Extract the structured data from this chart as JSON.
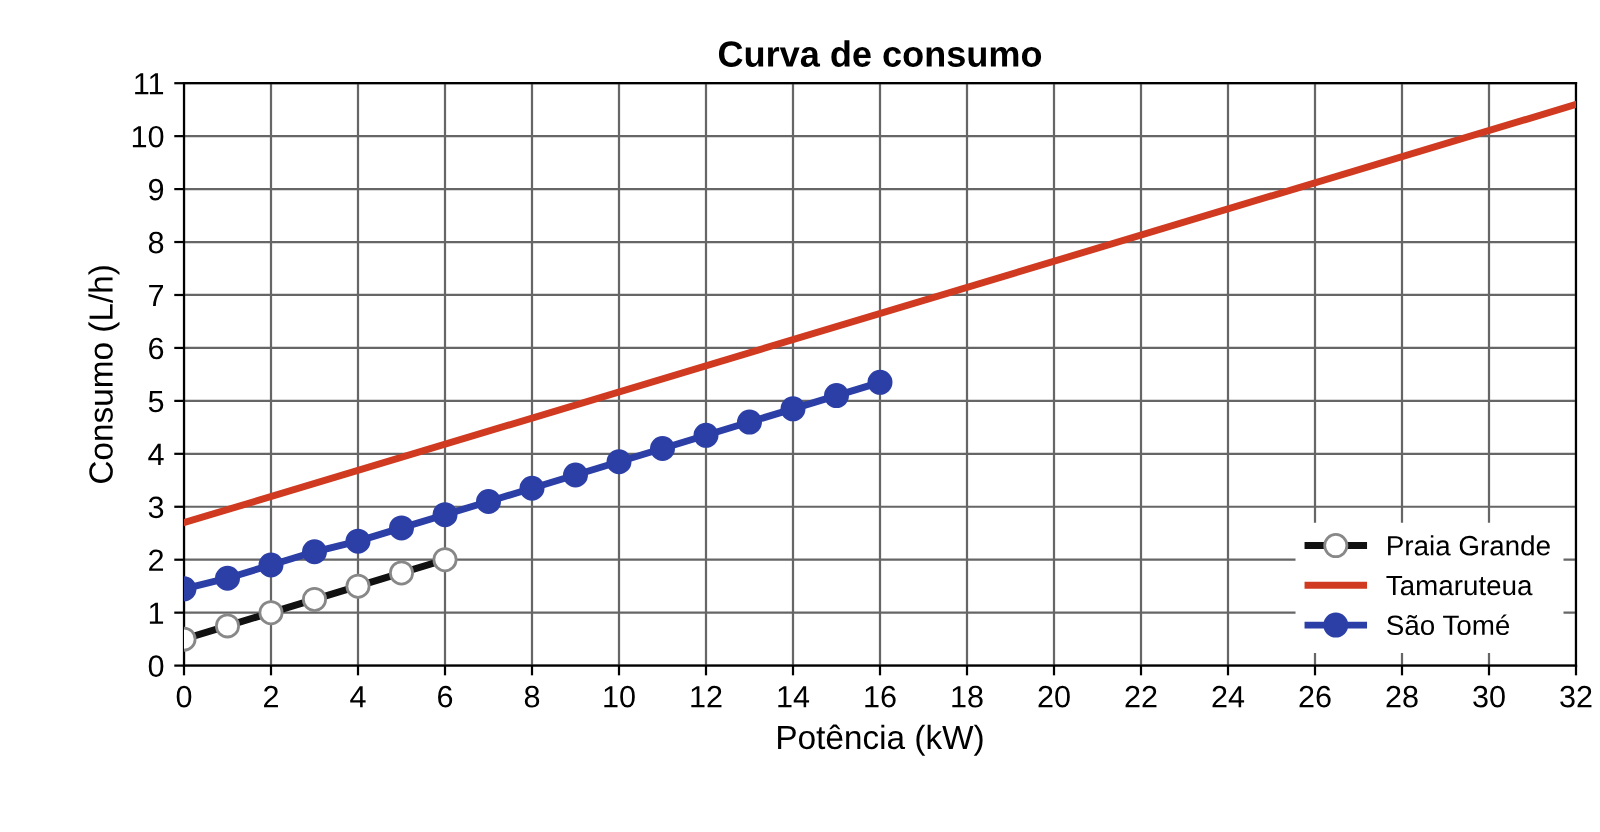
{
  "chart_data": {
    "type": "line",
    "title": "Curva de consumo",
    "xlabel": "Potência (kW)",
    "ylabel": "Consumo (L/h)",
    "xlim": [
      0,
      32
    ],
    "xticks": [
      0,
      2,
      4,
      6,
      8,
      10,
      12,
      14,
      16,
      18,
      20,
      22,
      24,
      26,
      28,
      30,
      32
    ],
    "ylim": [
      0,
      11
    ],
    "yticks": [
      0,
      1,
      2,
      3,
      4,
      5,
      6,
      7,
      8,
      9,
      10,
      11
    ],
    "grid": true,
    "legend": "bottom right",
    "series": [
      {
        "name": "Praia Grande",
        "color": "#111111",
        "marker": "circle",
        "x": [
          0,
          1,
          2,
          3,
          4,
          5,
          6
        ],
        "values": [
          0.5,
          0.75,
          1.0,
          1.25,
          1.5,
          1.75,
          2.0
        ]
      },
      {
        "name": "Tamaruteua",
        "color": "#d03a20",
        "marker": "none",
        "x": [
          0,
          32
        ],
        "values": [
          2.7,
          10.6
        ]
      },
      {
        "name": "São Tomé",
        "color": "#2b3fa6",
        "marker": "circle",
        "x": [
          0,
          1,
          2,
          3,
          4,
          5,
          6,
          7,
          8,
          9,
          10,
          11,
          12,
          13,
          14,
          15,
          16
        ],
        "values": [
          1.45,
          1.65,
          1.9,
          2.15,
          2.35,
          2.6,
          2.85,
          3.1,
          3.35,
          3.6,
          3.85,
          4.1,
          4.35,
          4.6,
          4.85,
          5.1,
          5.35
        ]
      }
    ]
  }
}
